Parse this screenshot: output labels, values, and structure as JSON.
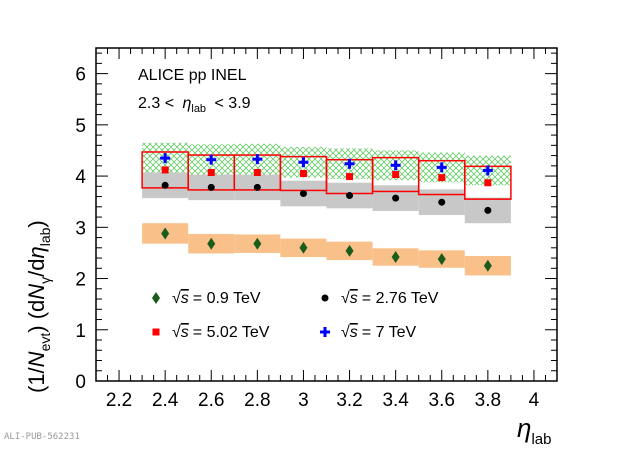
{
  "pub_id": "ALI-PUB-562231",
  "chart_data": {
    "type": "scatter",
    "annotation": {
      "collab": "ALICE pp INEL",
      "range_lo": "2.3 <",
      "eta": "η",
      "lab": "lab",
      "range_hi": "< 3.9"
    },
    "ylabel": {
      "pre": "(1/",
      "N": "N",
      "evt": "evt",
      "mid": ") (d",
      "N2": "N",
      "gamma": "γ",
      "slash": "/d",
      "eta": "η",
      "lab": "lab",
      "post": ")"
    },
    "xlabel": {
      "eta": "η",
      "lab": "lab"
    },
    "xlim": [
      2.1,
      4.1
    ],
    "ylim": [
      0,
      6.5
    ],
    "xticks": [
      2.2,
      2.4,
      2.6,
      2.8,
      3,
      3.2,
      3.4,
      3.6,
      3.8,
      4
    ],
    "xtick_labels": [
      "2.2",
      "2.4",
      "2.6",
      "2.8",
      "3",
      "3.2",
      "3.4",
      "3.6",
      "3.8",
      "4"
    ],
    "yticks": [
      0,
      1,
      2,
      3,
      4,
      5,
      6
    ],
    "ytick_labels": [
      "0",
      "1",
      "2",
      "3",
      "4",
      "5",
      "6"
    ],
    "bin_edges": [
      2.3,
      2.5,
      2.7,
      2.9,
      3.1,
      3.3,
      3.5,
      3.7,
      3.9
    ],
    "series": [
      {
        "sqrt": "√",
        "s": "s",
        "energy": "= 0.9 TeV",
        "marker": "diamond",
        "color": "#1a5c1a",
        "band": "#f9c08a",
        "band_style": "fill",
        "x": [
          2.4,
          2.6,
          2.8,
          3.0,
          3.2,
          3.4,
          3.6,
          3.8
        ],
        "y": [
          2.88,
          2.68,
          2.68,
          2.6,
          2.54,
          2.42,
          2.38,
          2.25
        ],
        "sys": [
          0.2,
          0.19,
          0.18,
          0.18,
          0.18,
          0.17,
          0.17,
          0.19
        ]
      },
      {
        "sqrt": "√",
        "s": "s",
        "energy": "= 2.76 TeV",
        "marker": "circle",
        "color": "#000000",
        "band": "#c8c8c8",
        "band_style": "fill",
        "x": [
          2.4,
          2.6,
          2.8,
          3.0,
          3.2,
          3.4,
          3.6,
          3.8
        ],
        "y": [
          3.82,
          3.78,
          3.78,
          3.66,
          3.62,
          3.57,
          3.49,
          3.33
        ],
        "sys": [
          0.25,
          0.25,
          0.25,
          0.25,
          0.25,
          0.25,
          0.25,
          0.25
        ]
      },
      {
        "sqrt": "√",
        "s": "s",
        "energy": "= 5.02 TeV",
        "marker": "square",
        "color": "#ff0000",
        "band": "#ff0000",
        "band_style": "outline",
        "x": [
          2.4,
          2.6,
          2.8,
          3.0,
          3.2,
          3.4,
          3.6,
          3.8
        ],
        "y": [
          4.12,
          4.07,
          4.07,
          4.05,
          3.99,
          4.03,
          3.97,
          3.87
        ],
        "sys": [
          0.35,
          0.34,
          0.34,
          0.33,
          0.33,
          0.33,
          0.33,
          0.32
        ]
      },
      {
        "sqrt": "√",
        "s": "s",
        "energy": "= 7 TeV",
        "marker": "plus",
        "color": "#0000ff",
        "band": "#66cc66",
        "band_style": "hatch",
        "x": [
          2.4,
          2.6,
          2.8,
          3.0,
          3.2,
          3.4,
          3.6,
          3.8
        ],
        "y": [
          4.35,
          4.32,
          4.33,
          4.27,
          4.24,
          4.21,
          4.17,
          4.11
        ],
        "sys": [
          0.3,
          0.3,
          0.3,
          0.3,
          0.3,
          0.29,
          0.29,
          0.29
        ]
      }
    ],
    "legend": {
      "placement": "bottom",
      "columns": 2
    }
  }
}
